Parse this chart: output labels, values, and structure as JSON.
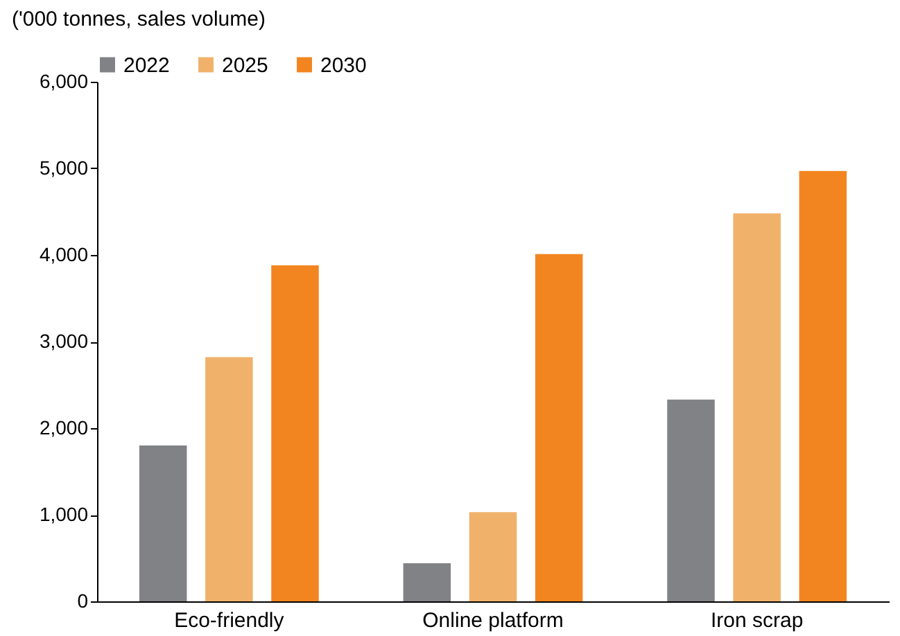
{
  "chart_data": {
    "type": "bar",
    "ylabel": "('000 tonnes, sales volume)",
    "categories": [
      "Eco-friendly",
      "Online platform",
      "Iron scrap"
    ],
    "series": [
      {
        "name": "2022",
        "color": "#808285",
        "values": [
          1800,
          440,
          2330
        ]
      },
      {
        "name": "2025",
        "color": "#f0b26b",
        "values": [
          2820,
          1030,
          4480
        ]
      },
      {
        "name": "2030",
        "color": "#f28520",
        "values": [
          3880,
          4010,
          4970
        ]
      }
    ],
    "ylim": [
      0,
      6000
    ],
    "yticks": [
      0,
      {
        "value": 1000,
        "label": "1,000"
      },
      {
        "value": 2000,
        "label": "2,000"
      },
      {
        "value": 3000,
        "label": "3,000"
      },
      {
        "value": 4000,
        "label": "4,000"
      },
      {
        "value": 5000,
        "label": "5,000"
      },
      {
        "value": 6000,
        "label": "6,000"
      }
    ],
    "grid": false,
    "legend": "top"
  }
}
